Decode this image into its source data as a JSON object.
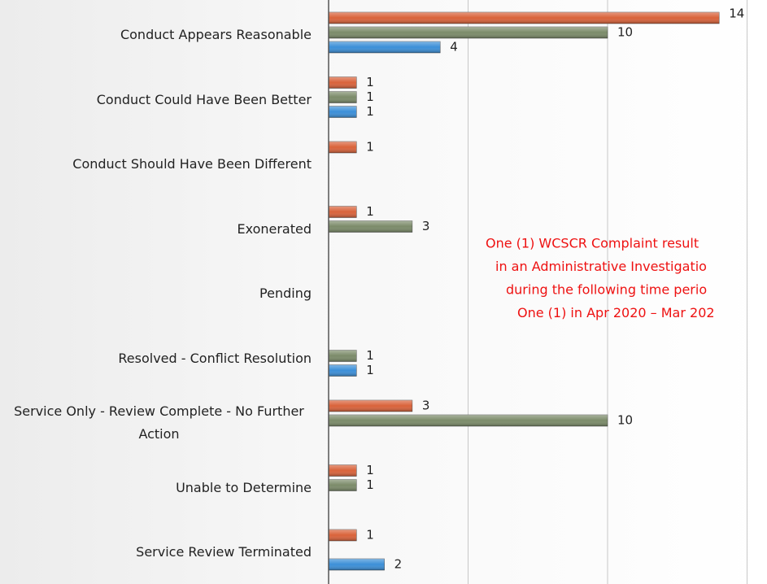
{
  "chart_data": {
    "type": "bar",
    "orientation": "horizontal",
    "categories": [
      "Conduct Appears Reasonable",
      "Conduct Could Have Been Better",
      "Conduct Should Have Been Different",
      "Exonerated",
      "Pending",
      "Resolved - Conflict Resolution",
      "Service Only - Review Complete - No Further Action",
      "Unable to Determine",
      "Service Review Terminated"
    ],
    "series": [
      {
        "color": "#d9623a",
        "values": [
          14,
          1,
          1,
          1,
          null,
          null,
          3,
          1,
          1
        ]
      },
      {
        "color": "#7b8b69",
        "values": [
          10,
          1,
          null,
          3,
          null,
          1,
          10,
          1,
          null
        ]
      },
      {
        "color": "#3b8fd8",
        "values": [
          4,
          1,
          null,
          null,
          null,
          1,
          null,
          null,
          2
        ]
      }
    ],
    "xlim": [
      0,
      15.7
    ],
    "xticks": [
      0,
      5,
      10,
      15
    ],
    "grid": true,
    "annotation": {
      "color": "#ee1111",
      "lines": [
        "One (1) WCSCR Complaint result",
        "in an Administrative Investigatio",
        "during the following time perio",
        "One (1) in Apr 2020 – Mar 202"
      ]
    }
  }
}
